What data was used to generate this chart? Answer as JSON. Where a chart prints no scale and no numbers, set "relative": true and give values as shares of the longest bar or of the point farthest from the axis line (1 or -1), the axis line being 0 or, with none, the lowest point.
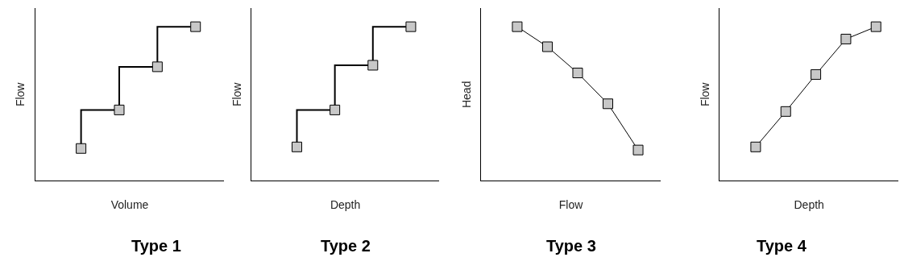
{
  "chart_data": [
    {
      "type": "step",
      "title": "Type 1",
      "xlabel": "Volume",
      "ylabel": "Flow",
      "relative": true,
      "marker": "square",
      "categories": [
        null,
        null,
        null,
        null
      ],
      "series": [
        {
          "color": "#000000",
          "values": [
            0.21,
            0.46,
            0.74,
            1
          ]
        }
      ]
    },
    {
      "type": "step",
      "title": "Type 2",
      "xlabel": "Depth",
      "ylabel": "Flow",
      "relative": true,
      "marker": "square",
      "categories": [
        null,
        null,
        null,
        null
      ],
      "series": [
        {
          "color": "#000000",
          "values": [
            0.22,
            0.46,
            0.75,
            1
          ]
        }
      ]
    },
    {
      "type": "line",
      "title": "Type 3",
      "xlabel": "Flow",
      "ylabel": "Head",
      "relative": true,
      "marker": "square",
      "categories": [
        null,
        null,
        null,
        null,
        null
      ],
      "series": [
        {
          "color": "#000000",
          "values": [
            1,
            0.87,
            0.7,
            0.5,
            0.2
          ]
        }
      ]
    },
    {
      "type": "line",
      "title": "Type 4",
      "xlabel": "Depth",
      "ylabel": "Flow",
      "relative": true,
      "marker": "square",
      "categories": [
        null,
        null,
        null,
        null,
        null
      ],
      "series": [
        {
          "color": "#000000",
          "values": [
            0.22,
            0.45,
            0.69,
            0.92,
            1
          ]
        }
      ]
    }
  ]
}
